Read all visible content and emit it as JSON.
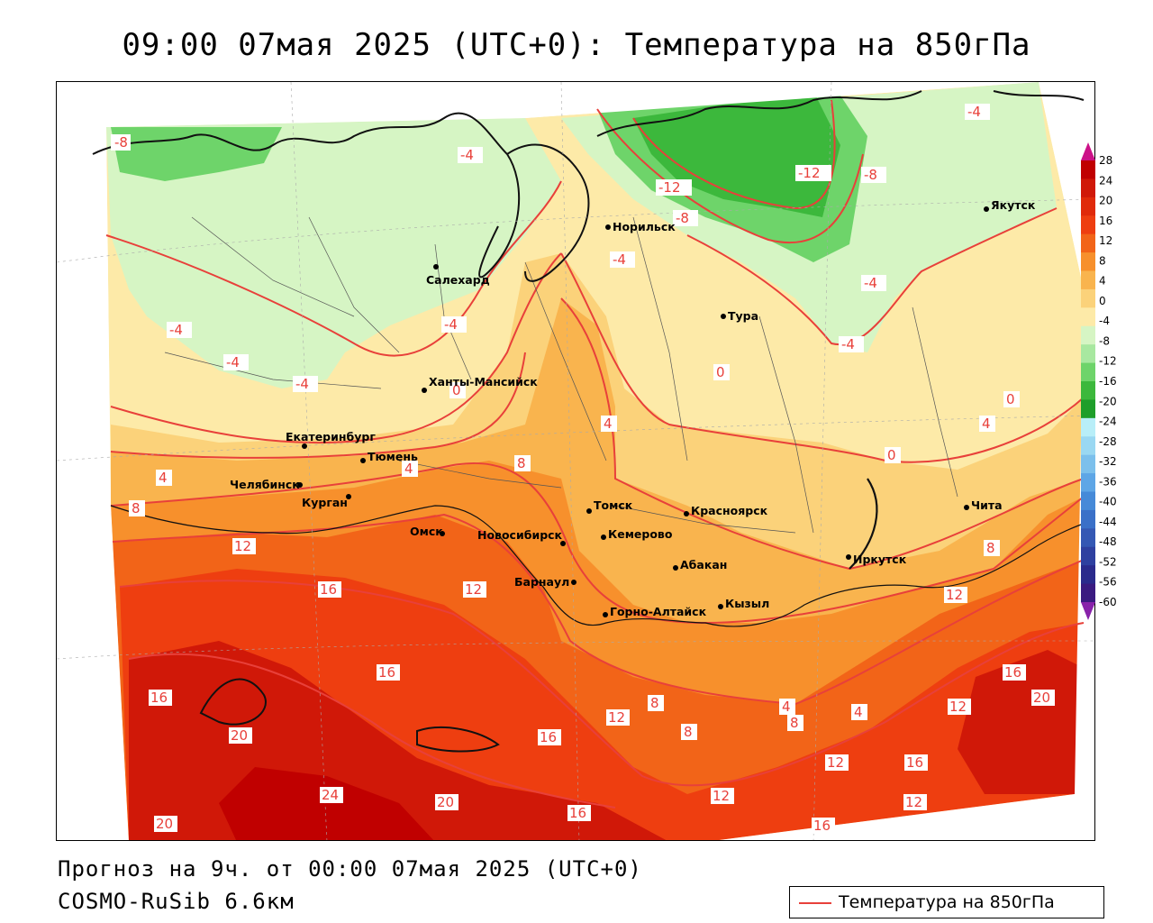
{
  "title": "09:00 07мая 2025 (UTC+0): Температура на 850гПа",
  "footer": {
    "forecast": "Прогноз на 9ч. от 00:00 07мая 2025 (UTC+0)",
    "model": "COSMO-RuSib 6.6км"
  },
  "legend": {
    "label": "Температура на 850гПа",
    "line_color": "#e8403a"
  },
  "colorbar": {
    "labels": [
      "28",
      "24",
      "20",
      "16",
      "12",
      "8",
      "4",
      "0",
      "-4",
      "-8",
      "-12",
      "-16",
      "-20",
      "-24",
      "-28",
      "-32",
      "-36",
      "-40",
      "-44",
      "-48",
      "-52",
      "-56",
      "-60"
    ],
    "colors": [
      "#c00000",
      "#d01808",
      "#e02a0a",
      "#ee3e10",
      "#f26418",
      "#f7902c",
      "#f9b44e",
      "#fbd27a",
      "#fdeaa8",
      "#d6f5c4",
      "#a8e8a0",
      "#6ed46a",
      "#3cb83c",
      "#1e9e2a",
      "#b8eef8",
      "#9ad8f2",
      "#7cc0ec",
      "#5ea6e6",
      "#468ad8",
      "#3a70c8",
      "#3458b4",
      "#2e40a0",
      "#2a2a8c",
      "#3a1a80"
    ],
    "top_tip_color": "#cc1188",
    "bottom_tip_color": "#8822aa"
  },
  "cities": [
    {
      "name": "Салехард"
    },
    {
      "name": "Норильск"
    },
    {
      "name": "Тура"
    },
    {
      "name": "Якутск"
    },
    {
      "name": "Ханты-Мансийск"
    },
    {
      "name": "Екатеринбург"
    },
    {
      "name": "Тюмень"
    },
    {
      "name": "Челябинск"
    },
    {
      "name": "Курган"
    },
    {
      "name": "Омск"
    },
    {
      "name": "Новосибирск"
    },
    {
      "name": "Томск"
    },
    {
      "name": "Кемерово"
    },
    {
      "name": "Красноярск"
    },
    {
      "name": "Барнаул"
    },
    {
      "name": "Абакан"
    },
    {
      "name": "Горно-Алтайск"
    },
    {
      "name": "Кызыл"
    },
    {
      "name": "Иркутск"
    },
    {
      "name": "Чита"
    }
  ],
  "isolines": [
    "-8",
    "-4",
    "-12",
    "-12",
    "-8",
    "-4",
    "-8",
    "-4",
    "-4",
    "-4",
    "-4",
    "-4",
    "-4",
    "0",
    "-4",
    "0",
    "0",
    "0",
    "4",
    "4",
    "4",
    "8",
    "4",
    "8",
    "8",
    "12",
    "16",
    "12",
    "16",
    "16",
    "20",
    "24",
    "20",
    "20",
    "12",
    "16",
    "16",
    "12",
    "8",
    "8",
    "4",
    "8",
    "4",
    "12",
    "16",
    "16",
    "12",
    "20",
    "12",
    "12",
    "16"
  ]
}
